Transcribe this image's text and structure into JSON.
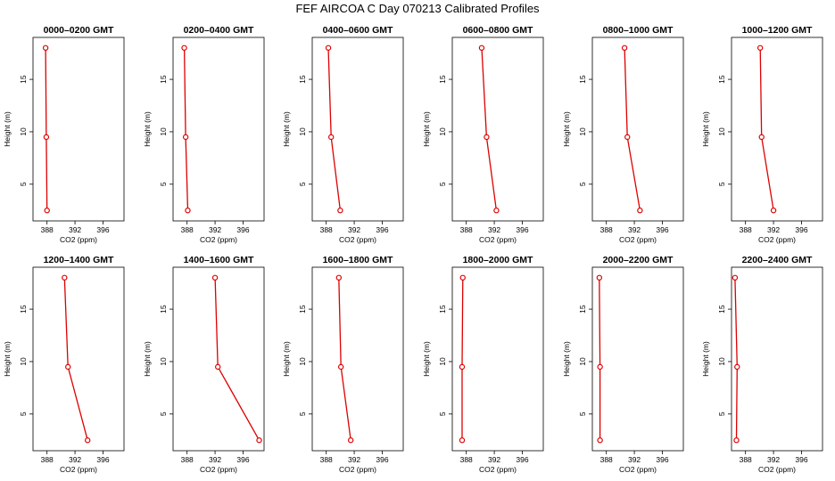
{
  "title": "FEF AIRCOA C  Day 070213  Calibrated Profiles",
  "colors": {
    "series": "#dd0000",
    "axis": "#000000"
  },
  "chart_data": {
    "type": "line",
    "xlabel": "CO2 (ppm)",
    "ylabel": "Height (m)",
    "xlim": [
      386,
      399
    ],
    "ylim": [
      1.5,
      19
    ],
    "xticks": [
      388,
      392,
      396
    ],
    "yticks": [
      5,
      10,
      15
    ],
    "grid": false,
    "heights": [
      2.5,
      9.5,
      18
    ],
    "panels": [
      {
        "title": "0000–0200 GMT",
        "x": [
          388.0,
          387.9,
          387.8
        ]
      },
      {
        "title": "0200–0400 GMT",
        "x": [
          388.1,
          387.8,
          387.6
        ]
      },
      {
        "title": "0400–0600 GMT",
        "x": [
          390.0,
          388.7,
          388.3
        ]
      },
      {
        "title": "0600–0800 GMT",
        "x": [
          392.3,
          390.9,
          390.2
        ]
      },
      {
        "title": "0800–1000 GMT",
        "x": [
          392.8,
          391.0,
          390.6
        ]
      },
      {
        "title": "1000–1200 GMT",
        "x": [
          392.0,
          390.3,
          390.1
        ]
      },
      {
        "title": "1200–1400 GMT",
        "x": [
          393.8,
          391.0,
          390.5
        ]
      },
      {
        "title": "1400–1600 GMT",
        "x": [
          398.3,
          392.4,
          392.0
        ]
      },
      {
        "title": "1600–1800 GMT",
        "x": [
          391.5,
          390.1,
          389.8
        ]
      },
      {
        "title": "1800–2000 GMT",
        "x": [
          387.4,
          387.4,
          387.5
        ]
      },
      {
        "title": "2000–2200 GMT",
        "x": [
          387.1,
          387.1,
          387.0
        ]
      },
      {
        "title": "2200–2400 GMT",
        "x": [
          386.7,
          386.8,
          386.5
        ]
      }
    ]
  }
}
